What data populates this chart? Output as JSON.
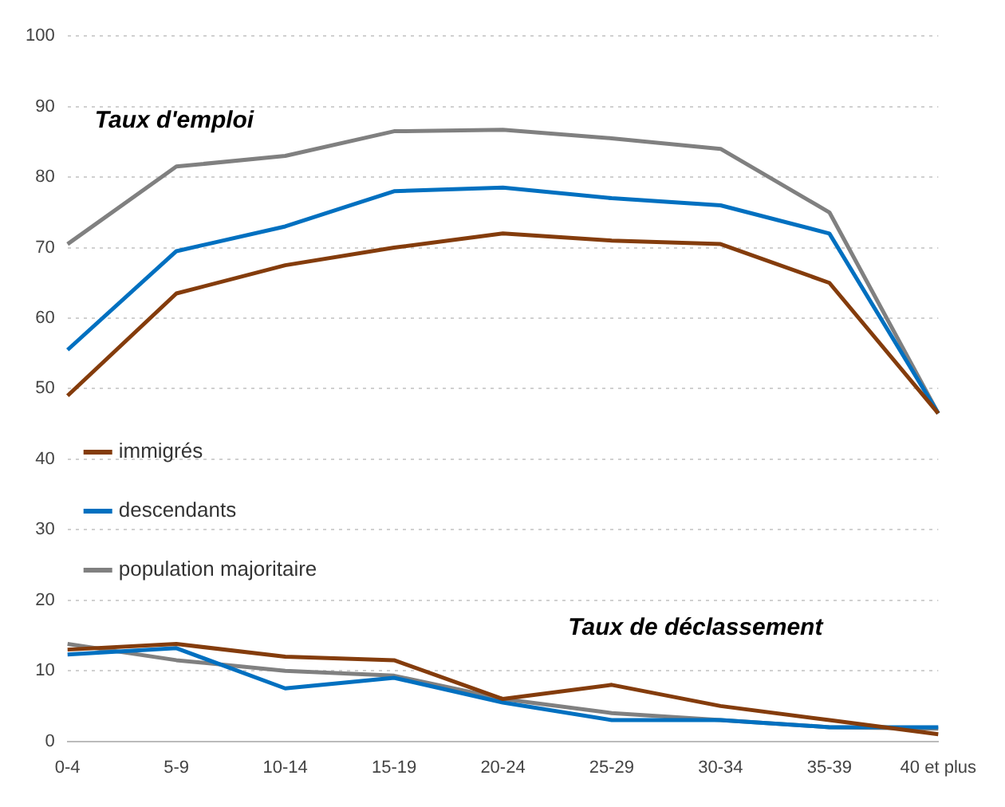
{
  "chart_data": {
    "type": "line",
    "categories": [
      "0-4",
      "5-9",
      "10-14",
      "15-19",
      "20-24",
      "25-29",
      "30-34",
      "35-39",
      "40 et plus"
    ],
    "series": [
      {
        "name": "immigrés",
        "color": "#843c0c",
        "values": [
          49,
          63.5,
          67.5,
          70,
          72,
          71,
          70.5,
          65,
          46.5
        ]
      },
      {
        "name": "descendants",
        "color": "#0070c0",
        "values": [
          55.5,
          69.5,
          73,
          78,
          78.5,
          77,
          76,
          72,
          46.5
        ]
      },
      {
        "name": "population majoritaire",
        "color": "#808080",
        "values": [
          70.5,
          81.5,
          83,
          86.5,
          86.7,
          85.5,
          84,
          75,
          46.5
        ]
      },
      {
        "color": "#843c0c",
        "values": [
          13,
          13.8,
          12,
          11.5,
          6,
          8,
          5,
          3,
          1
        ]
      },
      {
        "color": "#0070c0",
        "values": [
          12.3,
          13.2,
          7.5,
          9,
          5.5,
          3,
          3,
          2,
          2
        ]
      },
      {
        "color": "#808080",
        "values": [
          13.8,
          11.5,
          10,
          9.3,
          6,
          4,
          3,
          2,
          1.8
        ]
      }
    ],
    "annotations": [
      "Taux d'emploi",
      "Taux de déclassement"
    ],
    "ylim": [
      0,
      100
    ],
    "yticks": [
      0,
      10,
      20,
      30,
      40,
      50,
      60,
      70,
      80,
      90,
      100
    ],
    "grid": "y",
    "legend": "left",
    "marker": "none",
    "line_style": "solid"
  }
}
